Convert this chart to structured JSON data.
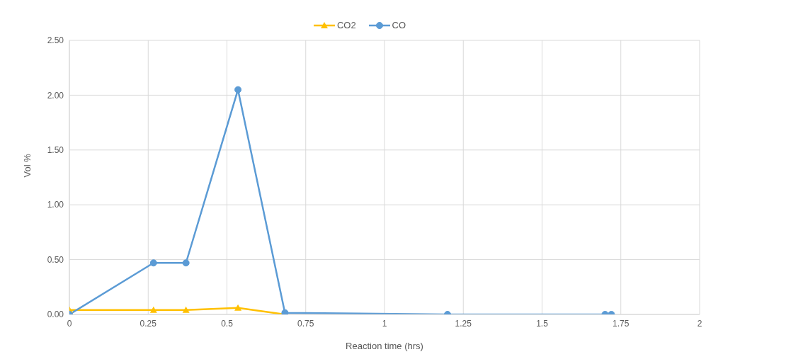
{
  "chart_data": {
    "type": "line",
    "xlabel": "Reaction time (hrs)",
    "ylabel": "Vol %",
    "legend": "top",
    "grid": true,
    "xlim": [
      0,
      2
    ],
    "xticks": [
      0,
      0.25,
      0.5,
      0.75,
      1,
      1.25,
      1.5,
      1.75,
      2
    ],
    "ylim": [
      0,
      2.5
    ],
    "yticks": [
      {
        "value": 0,
        "label": "0.00"
      },
      {
        "value": 0.5,
        "label": "0.50"
      },
      {
        "value": 1,
        "label": "1.00"
      },
      {
        "value": 1.5,
        "label": "1.50"
      },
      {
        "value": 2,
        "label": "2.00"
      },
      {
        "value": 2.5,
        "label": "2.50"
      }
    ],
    "series": [
      {
        "name": "CO2",
        "color": "#ffc000",
        "marker": "triangle",
        "x": [
          0,
          0.267,
          0.37,
          0.535,
          0.684
        ],
        "values": [
          0.04,
          0.04,
          0.04,
          0.06,
          0
        ]
      },
      {
        "name": "CO",
        "color": "#5b9bd5",
        "marker": "circle",
        "x": [
          0,
          0.267,
          0.37,
          0.535,
          0.684,
          1.2,
          1.7,
          1.72
        ],
        "values": [
          0,
          0.47,
          0.47,
          2.05,
          0.015,
          0,
          0,
          0
        ]
      }
    ]
  }
}
